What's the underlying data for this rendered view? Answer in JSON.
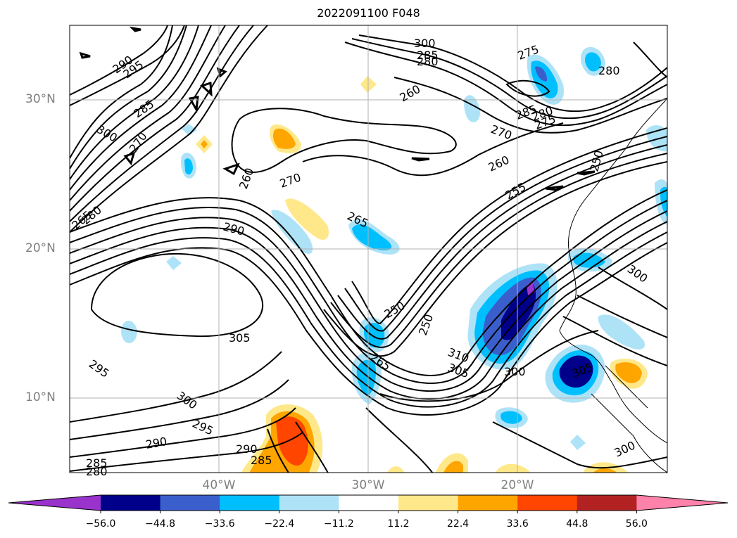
{
  "title": "2022091100 F048",
  "map": {
    "lat_labels": [
      "30°N",
      "20°N",
      "10°N"
    ],
    "lon_labels": [
      "40°W",
      "30°W",
      "20°W"
    ],
    "contour_labels": [
      "290",
      "295",
      "300",
      "285",
      "280",
      "260",
      "275",
      "280",
      "285",
      "270",
      "260",
      "300",
      "270",
      "285",
      "280",
      "275",
      "265",
      "250",
      "255",
      "260",
      "270",
      "265",
      "290",
      "280",
      "250",
      "305",
      "295",
      "300",
      "300",
      "295",
      "290",
      "290",
      "285",
      "285",
      "280",
      "250",
      "310",
      "305",
      "300",
      "300",
      "305",
      "265"
    ]
  },
  "colorbar": {
    "ticks": [
      "−56.0",
      "−44.8",
      "−33.6",
      "−22.4",
      "−11.2",
      "11.2",
      "22.4",
      "33.6",
      "44.8",
      "56.0"
    ],
    "colors": [
      "#9933cc",
      "#00008b",
      "#3a5fcd",
      "#00bfff",
      "#aee3f7",
      "#ffffff",
      "#ffe88a",
      "#ffa500",
      "#ff4500",
      "#b22222",
      "#ff82ab"
    ]
  }
}
